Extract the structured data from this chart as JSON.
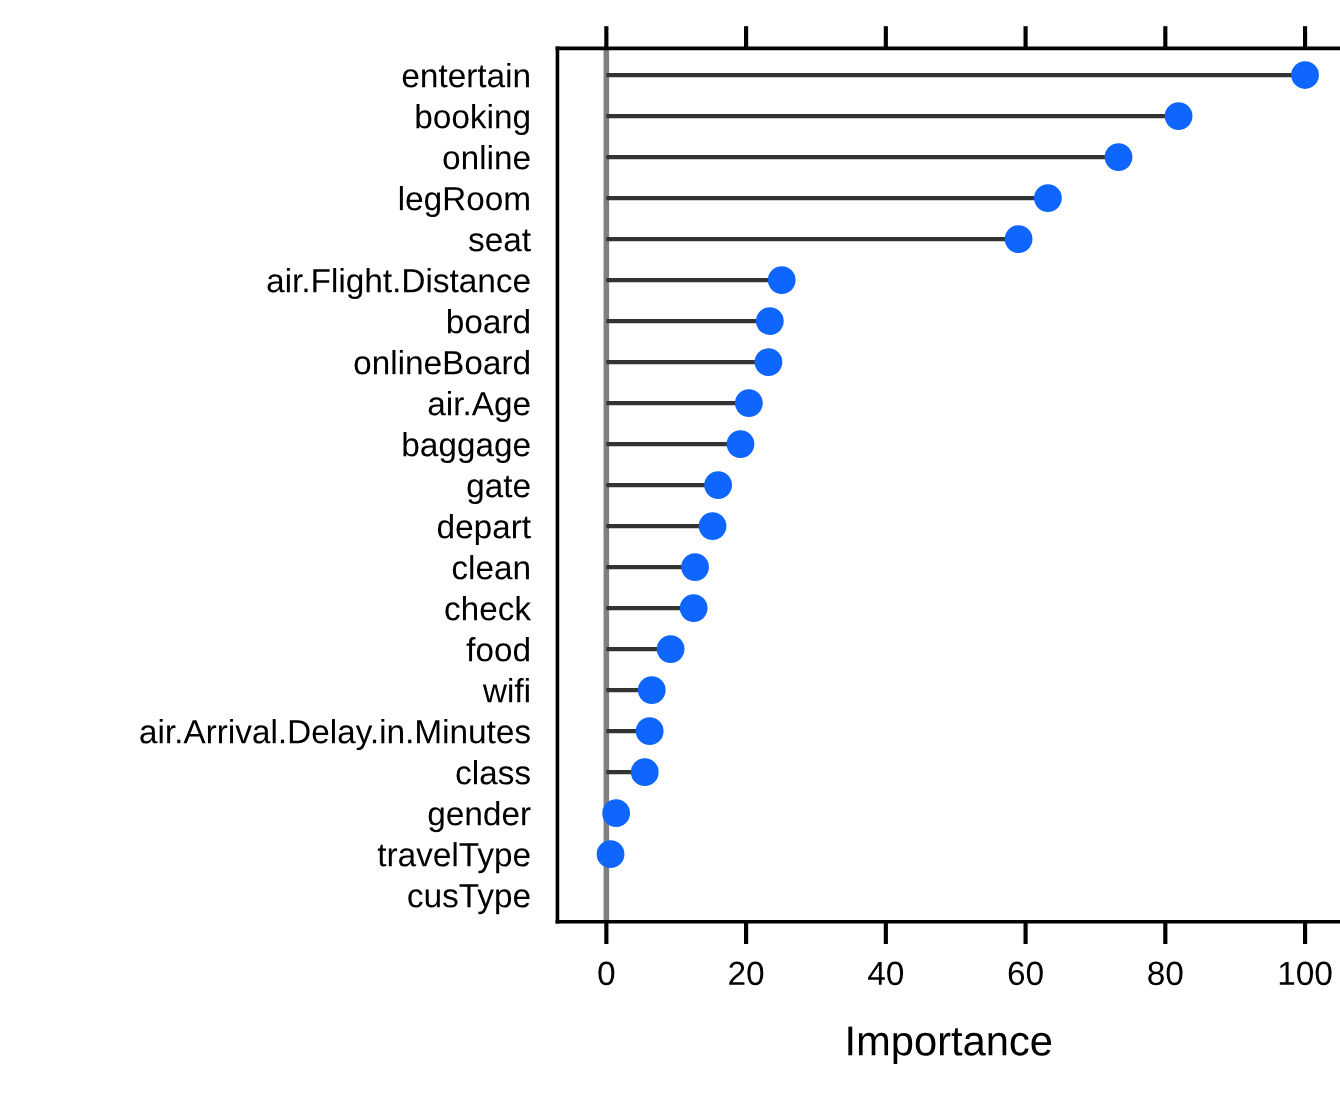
{
  "chart_data": {
    "type": "lollipop",
    "orientation": "horizontal",
    "xlabel": "Importance",
    "categories": [
      "entertain",
      "booking",
      "online",
      "legRoom",
      "seat",
      "air.Flight.Distance",
      "board",
      "onlineBoard",
      "air.Age",
      "baggage",
      "gate",
      "depart",
      "clean",
      "check",
      "food",
      "wifi",
      "air.Arrival.Delay.in.Minutes",
      "class",
      "gender",
      "travelType",
      "cusType"
    ],
    "values": [
      100,
      81.9,
      73.3,
      63.2,
      59.0,
      25.1,
      23.4,
      23.2,
      20.4,
      19.2,
      16.0,
      15.2,
      12.7,
      12.5,
      9.2,
      6.5,
      6.2,
      5.5,
      1.4,
      0.6,
      null
    ],
    "color": "#0f66ff",
    "marker": "circle",
    "xlim": [
      -7,
      105
    ],
    "xticks": [
      0,
      20,
      40,
      60,
      80,
      100
    ],
    "ref_lines": [
      {
        "axis": "x",
        "value": 0,
        "color": "#808080"
      }
    ]
  }
}
